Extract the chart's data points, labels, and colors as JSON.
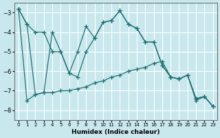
{
  "xlabel": "Humidex (Indice chaleur)",
  "background_color": "#c8e8ee",
  "grid_color": "#ffffff",
  "line_color": "#1a7070",
  "xlim": [
    -0.5,
    23.5
  ],
  "ylim": [
    -8.5,
    -2.5
  ],
  "yticks": [
    -8,
    -7,
    -6,
    -5,
    -4,
    -3
  ],
  "xticks": [
    0,
    1,
    2,
    3,
    4,
    5,
    6,
    7,
    8,
    9,
    10,
    11,
    12,
    13,
    14,
    15,
    16,
    17,
    18,
    19,
    20,
    21,
    22,
    23
  ],
  "line1_x": [
    0,
    1,
    2,
    3,
    4,
    5,
    6,
    7,
    8,
    9,
    10,
    11,
    12,
    13,
    14,
    15,
    16,
    17,
    18,
    19,
    20,
    21,
    22,
    23
  ],
  "line1_y": [
    -2.8,
    -3.6,
    -4.0,
    -4.0,
    -5.0,
    -5.0,
    -6.1,
    -5.0,
    -3.7,
    -4.3,
    -3.5,
    -3.4,
    -2.9,
    -3.6,
    -3.8,
    -4.5,
    -4.5,
    -5.7,
    -6.3,
    -6.4,
    -6.2,
    -7.4,
    -7.3,
    -7.8
  ],
  "line2_x": [
    0,
    1,
    2,
    3,
    4,
    5,
    6,
    7,
    8,
    9,
    10,
    11,
    12,
    13,
    14,
    15,
    16,
    17,
    18,
    19,
    20,
    21,
    22,
    23
  ],
  "line2_y": [
    -2.8,
    -7.5,
    -7.2,
    -7.1,
    -7.1,
    -7.0,
    -7.0,
    -6.9,
    -6.8,
    -6.6,
    -6.5,
    -6.3,
    -6.2,
    -6.0,
    -5.9,
    -5.8,
    -5.6,
    -5.5,
    -6.3,
    -6.4,
    -6.2,
    -7.5,
    -7.3,
    -7.8
  ],
  "line3_x": [
    0,
    1,
    2,
    3,
    4,
    5,
    6,
    7,
    8,
    9,
    10,
    11,
    12,
    13,
    14,
    15,
    16,
    17,
    18,
    19,
    20,
    21,
    22,
    23
  ],
  "line3_y": [
    -2.8,
    -3.6,
    -7.2,
    -7.1,
    -4.0,
    -5.0,
    -6.1,
    -6.3,
    -5.0,
    -4.3,
    -3.5,
    -3.4,
    -2.9,
    -3.6,
    -3.8,
    -4.5,
    -4.5,
    -5.7,
    -6.3,
    -6.4,
    -6.2,
    -7.4,
    -7.3,
    -7.8
  ]
}
